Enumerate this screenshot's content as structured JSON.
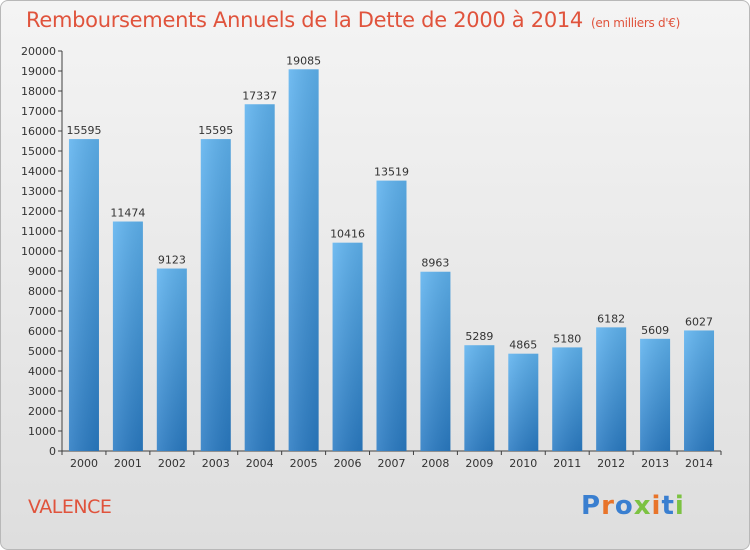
{
  "title": "Remboursements Annuels de la Dette de 2000 à 2014",
  "subtitle": "(en milliers d'€)",
  "city": "VALENCE",
  "logo": {
    "text": "Proxiti",
    "colors": [
      "#3a7fd0",
      "#e8742a",
      "#3a7fd0",
      "#7cc242",
      "#e8742a",
      "#3a7fd0",
      "#7cc242"
    ]
  },
  "colors": {
    "title": "#e0533c",
    "bar_top": "#5fb3ef",
    "bar_bottom": "#2a7bc3",
    "axis": "#404040"
  },
  "chart_data": {
    "type": "bar",
    "title": "Remboursements Annuels de la Dette de 2000 à 2014",
    "subtitle": "(en milliers d'€)",
    "xlabel": "",
    "ylabel": "",
    "ylim": [
      0,
      20000
    ],
    "ytick_step": 1000,
    "grid": false,
    "categories": [
      "2000",
      "2001",
      "2002",
      "2003",
      "2004",
      "2005",
      "2006",
      "2007",
      "2008",
      "2009",
      "2010",
      "2011",
      "2012",
      "2013",
      "2014"
    ],
    "values": [
      15595,
      11474,
      9123,
      15595,
      17337,
      19085,
      10416,
      13519,
      8963,
      5289,
      4865,
      5180,
      6182,
      5609,
      6027
    ]
  }
}
